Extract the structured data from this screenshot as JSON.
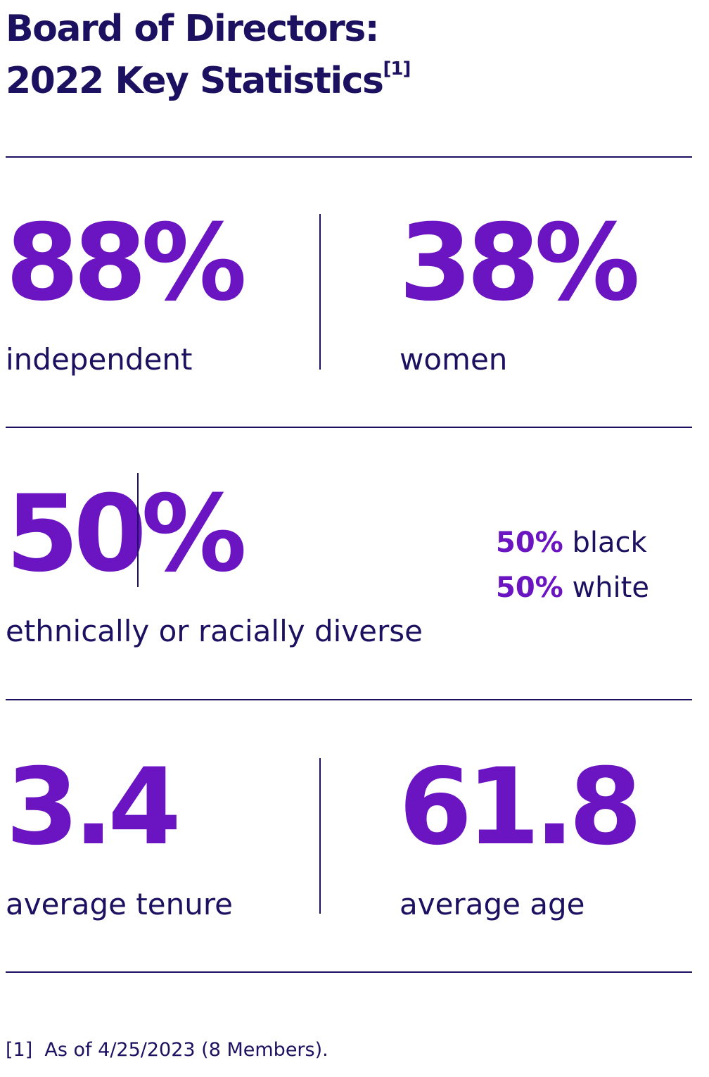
{
  "title": {
    "line1": "Board of Directors:",
    "line2": "2022 Key Statistics",
    "footnote_ref": "[1]"
  },
  "stats": {
    "independent": {
      "value": "88%",
      "label": "independent"
    },
    "women": {
      "value": "38%",
      "label": "women"
    },
    "diverse": {
      "value": "50%",
      "label": "ethnically or racially diverse",
      "breakdown": [
        {
          "pct": "50%",
          "group": "black"
        },
        {
          "pct": "50%",
          "group": "white"
        }
      ]
    },
    "tenure": {
      "value": "3.4",
      "label": "average tenure"
    },
    "age": {
      "value": "61.8",
      "label": "average age"
    }
  },
  "footnote": {
    "marker": "[1]",
    "text": "As of 4/25/2023 (8 Members)."
  },
  "colors": {
    "accent_purple": "#6a14c2",
    "navy": "#1c1160"
  }
}
